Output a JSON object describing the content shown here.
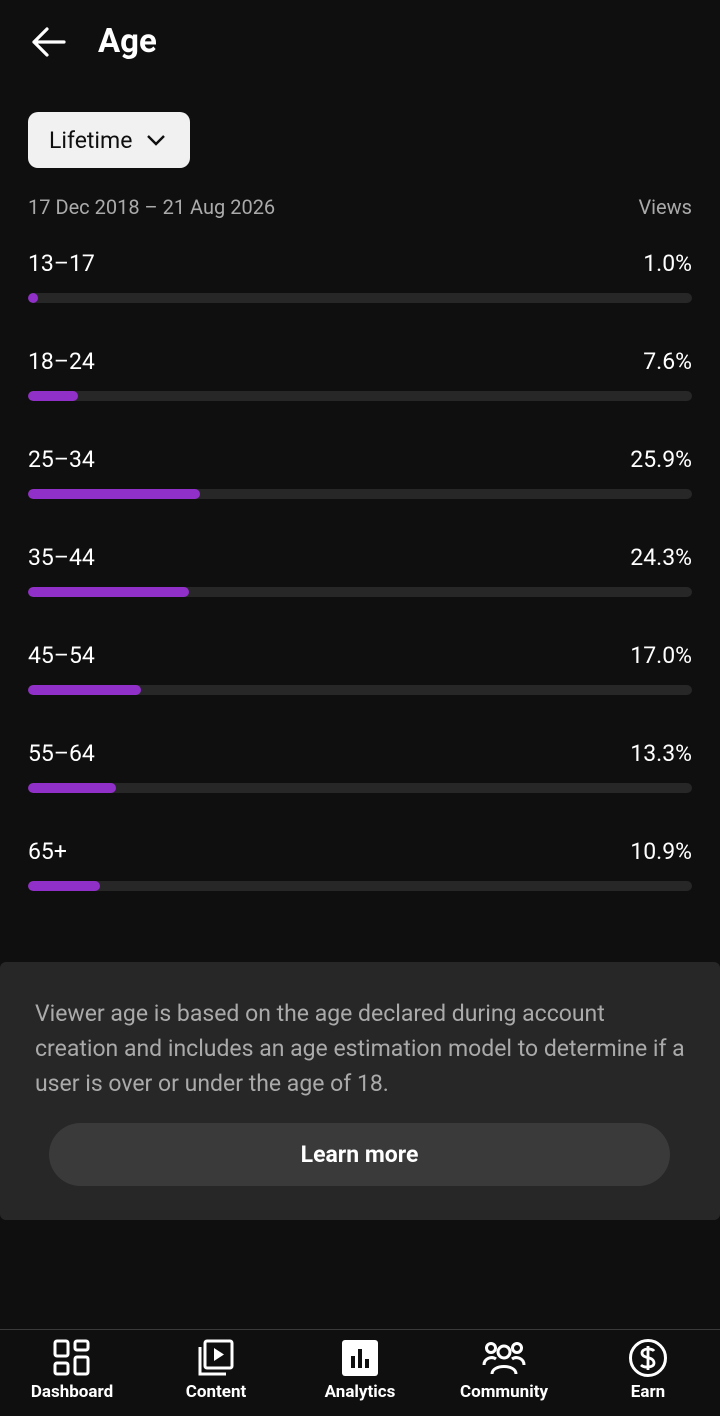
{
  "header": {
    "title": "Age"
  },
  "filter": "Lifetime",
  "date_range": "17 Dec 2018 – 21 Aug 2026",
  "column_label": "Views",
  "age_chart": {
    "type": "bar",
    "categories": [
      "13–17",
      "18–24",
      "25–34",
      "35–44",
      "45–54",
      "55–64",
      "65+"
    ],
    "values": [
      1.0,
      7.6,
      25.9,
      24.3,
      17.0,
      13.3,
      10.9
    ],
    "value_labels": [
      "1.0%",
      "7.6%",
      "25.9%",
      "24.3%",
      "17.0%",
      "13.3%",
      "10.9%"
    ],
    "xlim": [
      0,
      100
    ],
    "color": "#9130c8"
  },
  "note": "Viewer age is based on the age declared during account creation and includes an age estimation model to determine if a user is over or under the age of 18.",
  "learn_more": "Learn more",
  "nav": [
    "Dashboard",
    "Content",
    "Analytics",
    "Community",
    "Earn"
  ]
}
